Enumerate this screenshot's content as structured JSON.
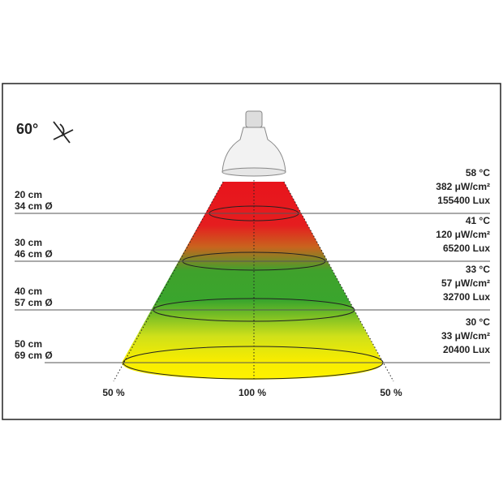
{
  "beam_angle": "60°",
  "levels": [
    {
      "distance": "20 cm",
      "diameter": "34 cm Ø",
      "temperature": "58 °C",
      "uv": "382 μW/cm²",
      "lux": "155400 Lux"
    },
    {
      "distance": "30 cm",
      "diameter": "46 cm Ø",
      "temperature": "41 °C",
      "uv": "120 μW/cm²",
      "lux": "65200 Lux"
    },
    {
      "distance": "40 cm",
      "diameter": "57 cm Ø",
      "temperature": "33 °C",
      "uv": "57 μW/cm²",
      "lux": "32700 Lux"
    },
    {
      "distance": "50 cm",
      "diameter": "69 cm Ø",
      "temperature": "30 °C",
      "uv": "33 μW/cm²",
      "lux": "20400 Lux"
    }
  ],
  "bottom_labels": [
    "50 %",
    "100 %",
    "50 %"
  ]
}
